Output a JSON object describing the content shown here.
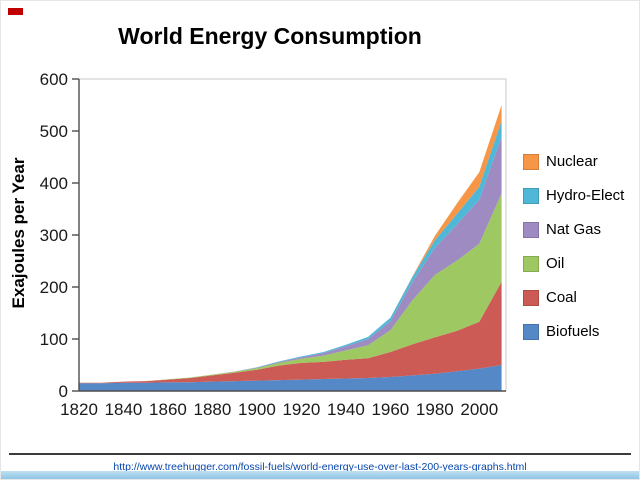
{
  "slide": {
    "title": "World Energy Consumption",
    "source_link_text": "http://www.treehugger.com/fossil-fuels/world-energy-use-over-last-200-years-graphs.html",
    "source_link_href": "http://www.treehugger.com/fossil-fuels/world-energy-use-over-last-200-years-graphs.html"
  },
  "chart_data": {
    "type": "area",
    "stacked": true,
    "title": "World Energy Consumption",
    "xlabel": "",
    "ylabel": "Exajoules per Year",
    "x": [
      1820,
      1830,
      1840,
      1850,
      1860,
      1870,
      1880,
      1890,
      1900,
      1910,
      1920,
      1930,
      1940,
      1950,
      1960,
      1970,
      1980,
      1990,
      2000,
      2010
    ],
    "x_tick_labels": [
      "1820",
      "1840",
      "1860",
      "1880",
      "1900",
      "1920",
      "1940",
      "1960",
      "1980",
      "2000"
    ],
    "y_ticks": [
      0,
      100,
      200,
      300,
      400,
      500,
      600
    ],
    "ylim": [
      0,
      600
    ],
    "xlim": [
      1820,
      2012
    ],
    "grid": false,
    "legend_position": "right",
    "legend_order": [
      "Nuclear",
      "Hydro-Elect",
      "Nat Gas",
      "Oil",
      "Coal",
      "Biofuels"
    ],
    "series": [
      {
        "name": "Biofuels",
        "color": "#5488C6",
        "values": [
          15,
          15,
          16,
          16,
          17,
          17,
          18,
          19,
          20,
          21,
          22,
          23,
          24,
          25,
          27,
          30,
          33,
          38,
          43,
          50
        ]
      },
      {
        "name": "Coal",
        "color": "#CD5B55",
        "values": [
          1,
          1,
          2,
          3,
          5,
          8,
          12,
          16,
          21,
          28,
          32,
          33,
          36,
          38,
          48,
          60,
          70,
          78,
          90,
          160
        ]
      },
      {
        "name": "Oil",
        "color": "#9DC862",
        "values": [
          0,
          0,
          0,
          0,
          0.5,
          1,
          1.5,
          2,
          3,
          5,
          8,
          12,
          18,
          25,
          42,
          85,
          120,
          135,
          150,
          170
        ]
      },
      {
        "name": "Nat Gas",
        "color": "#9E8BC2",
        "values": [
          0,
          0,
          0,
          0,
          0,
          0,
          0,
          0.5,
          1,
          2,
          3,
          5,
          8,
          12,
          17,
          35,
          52,
          70,
          85,
          110
        ]
      },
      {
        "name": "Hydro-Elect",
        "color": "#4FB8D8",
        "values": [
          0,
          0,
          0,
          0,
          0,
          0,
          0,
          0,
          0.5,
          1,
          1.5,
          2,
          3,
          4,
          7,
          10,
          15,
          20,
          25,
          30
        ]
      },
      {
        "name": "Nuclear",
        "color": "#F79646",
        "values": [
          0,
          0,
          0,
          0,
          0,
          0,
          0,
          0,
          0,
          0,
          0,
          0,
          0,
          0,
          0,
          1,
          8,
          20,
          28,
          30
        ]
      }
    ]
  }
}
